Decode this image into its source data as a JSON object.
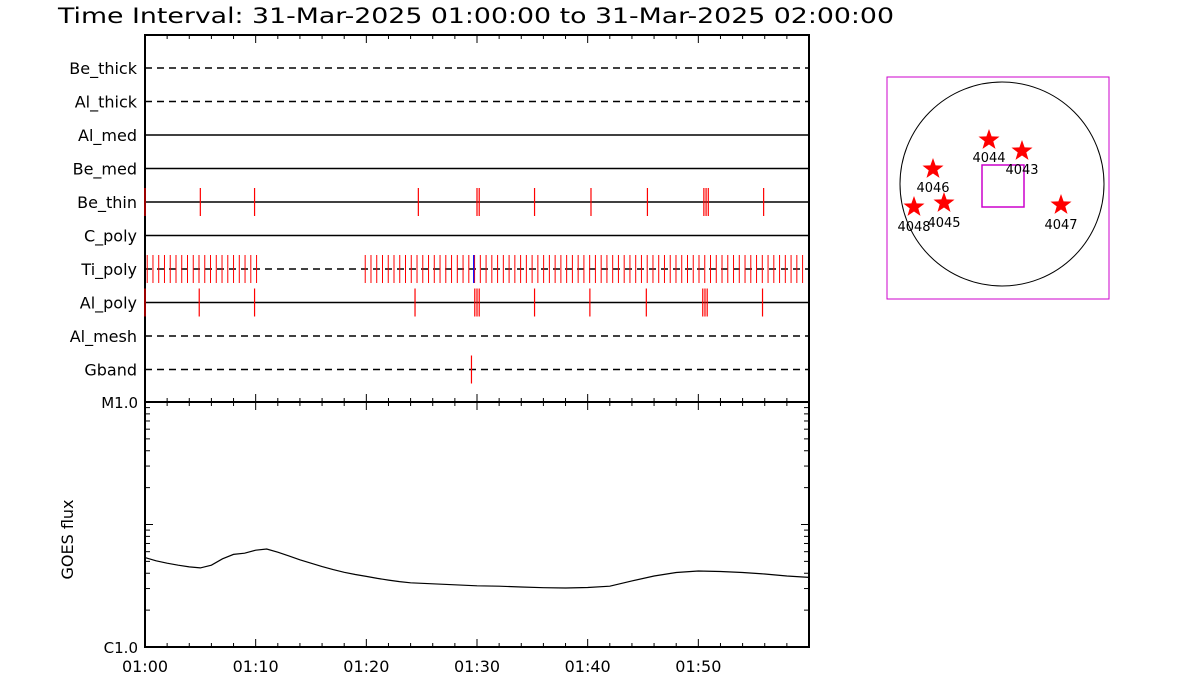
{
  "title": "Time Interval: 31-Mar-2025 01:00:00 to 31-Mar-2025 02:00:00",
  "colors": {
    "event": "#ff0000",
    "event_alt": "#0000ff",
    "axis": "#000000",
    "fov": "#cc00cc",
    "star": "#ff0000"
  },
  "chart_data": [
    {
      "type": "timeline",
      "x_range_minutes": [
        0,
        60
      ],
      "tick_labels": [
        "01:00",
        "01:10",
        "01:20",
        "01:30",
        "01:40",
        "01:50"
      ],
      "rows": [
        {
          "label": "Be_thick",
          "style": "dashed",
          "events": []
        },
        {
          "label": "Al_thick",
          "style": "dashed",
          "events": []
        },
        {
          "label": "Al_med",
          "style": "solid",
          "events": []
        },
        {
          "label": "Be_med",
          "style": "solid",
          "events": []
        },
        {
          "label": "Be_thin",
          "style": "solid",
          "events": [
            0.0,
            5.0,
            9.9,
            24.7,
            30.0,
            30.2,
            35.2,
            40.3,
            45.4,
            50.5,
            50.7,
            50.9,
            55.9
          ]
        },
        {
          "label": "C_poly",
          "style": "solid",
          "events": []
        },
        {
          "label": "Ti_poly",
          "style": "dashed",
          "events": [],
          "dense_ranges": [
            [
              0.2,
              10.2
            ],
            [
              19.9,
              59.8
            ]
          ],
          "dense_step": 0.52,
          "highlight_events": [
            29.7
          ]
        },
        {
          "label": "Al_poly",
          "style": "solid",
          "events": [
            0.0,
            4.9,
            9.9,
            24.4,
            29.8,
            30.0,
            30.2,
            35.2,
            40.2,
            45.3,
            50.4,
            50.6,
            50.8,
            55.8
          ]
        },
        {
          "label": "Al_mesh",
          "style": "dashed",
          "events": []
        },
        {
          "label": "Gband",
          "style": "dashed",
          "events": [
            29.5
          ]
        }
      ]
    },
    {
      "type": "line",
      "ylabel": "GOES flux",
      "y_tick_labels": [
        "M1.0",
        "C1.0"
      ],
      "log_scale": true,
      "tick_labels": [
        "01:00",
        "01:10",
        "01:20",
        "01:30",
        "01:40",
        "01:50"
      ],
      "x": [
        0,
        1,
        2,
        3,
        4,
        5,
        6,
        7,
        8,
        9,
        10,
        11,
        12,
        13,
        14,
        15,
        16,
        17,
        18,
        19,
        20,
        21,
        22,
        23,
        24,
        25,
        26,
        27,
        28,
        29,
        30,
        32,
        34,
        36,
        38,
        40,
        42,
        44,
        46,
        48,
        50,
        52,
        54,
        56,
        58,
        60
      ],
      "y": [
        0.365,
        0.352,
        0.342,
        0.334,
        0.327,
        0.323,
        0.334,
        0.36,
        0.378,
        0.383,
        0.395,
        0.4,
        0.387,
        0.372,
        0.356,
        0.342,
        0.328,
        0.316,
        0.305,
        0.296,
        0.288,
        0.28,
        0.273,
        0.267,
        0.262,
        0.26,
        0.258,
        0.256,
        0.254,
        0.252,
        0.25,
        0.248,
        0.245,
        0.242,
        0.241,
        0.243,
        0.248,
        0.27,
        0.29,
        0.304,
        0.31,
        0.308,
        0.304,
        0.298,
        0.29,
        0.284
      ]
    }
  ],
  "solar_map": {
    "regions": [
      {
        "label": "4044"
      },
      {
        "label": "4043"
      },
      {
        "label": "4046"
      },
      {
        "label": "4045"
      },
      {
        "label": "4048"
      },
      {
        "label": "4047"
      }
    ]
  }
}
